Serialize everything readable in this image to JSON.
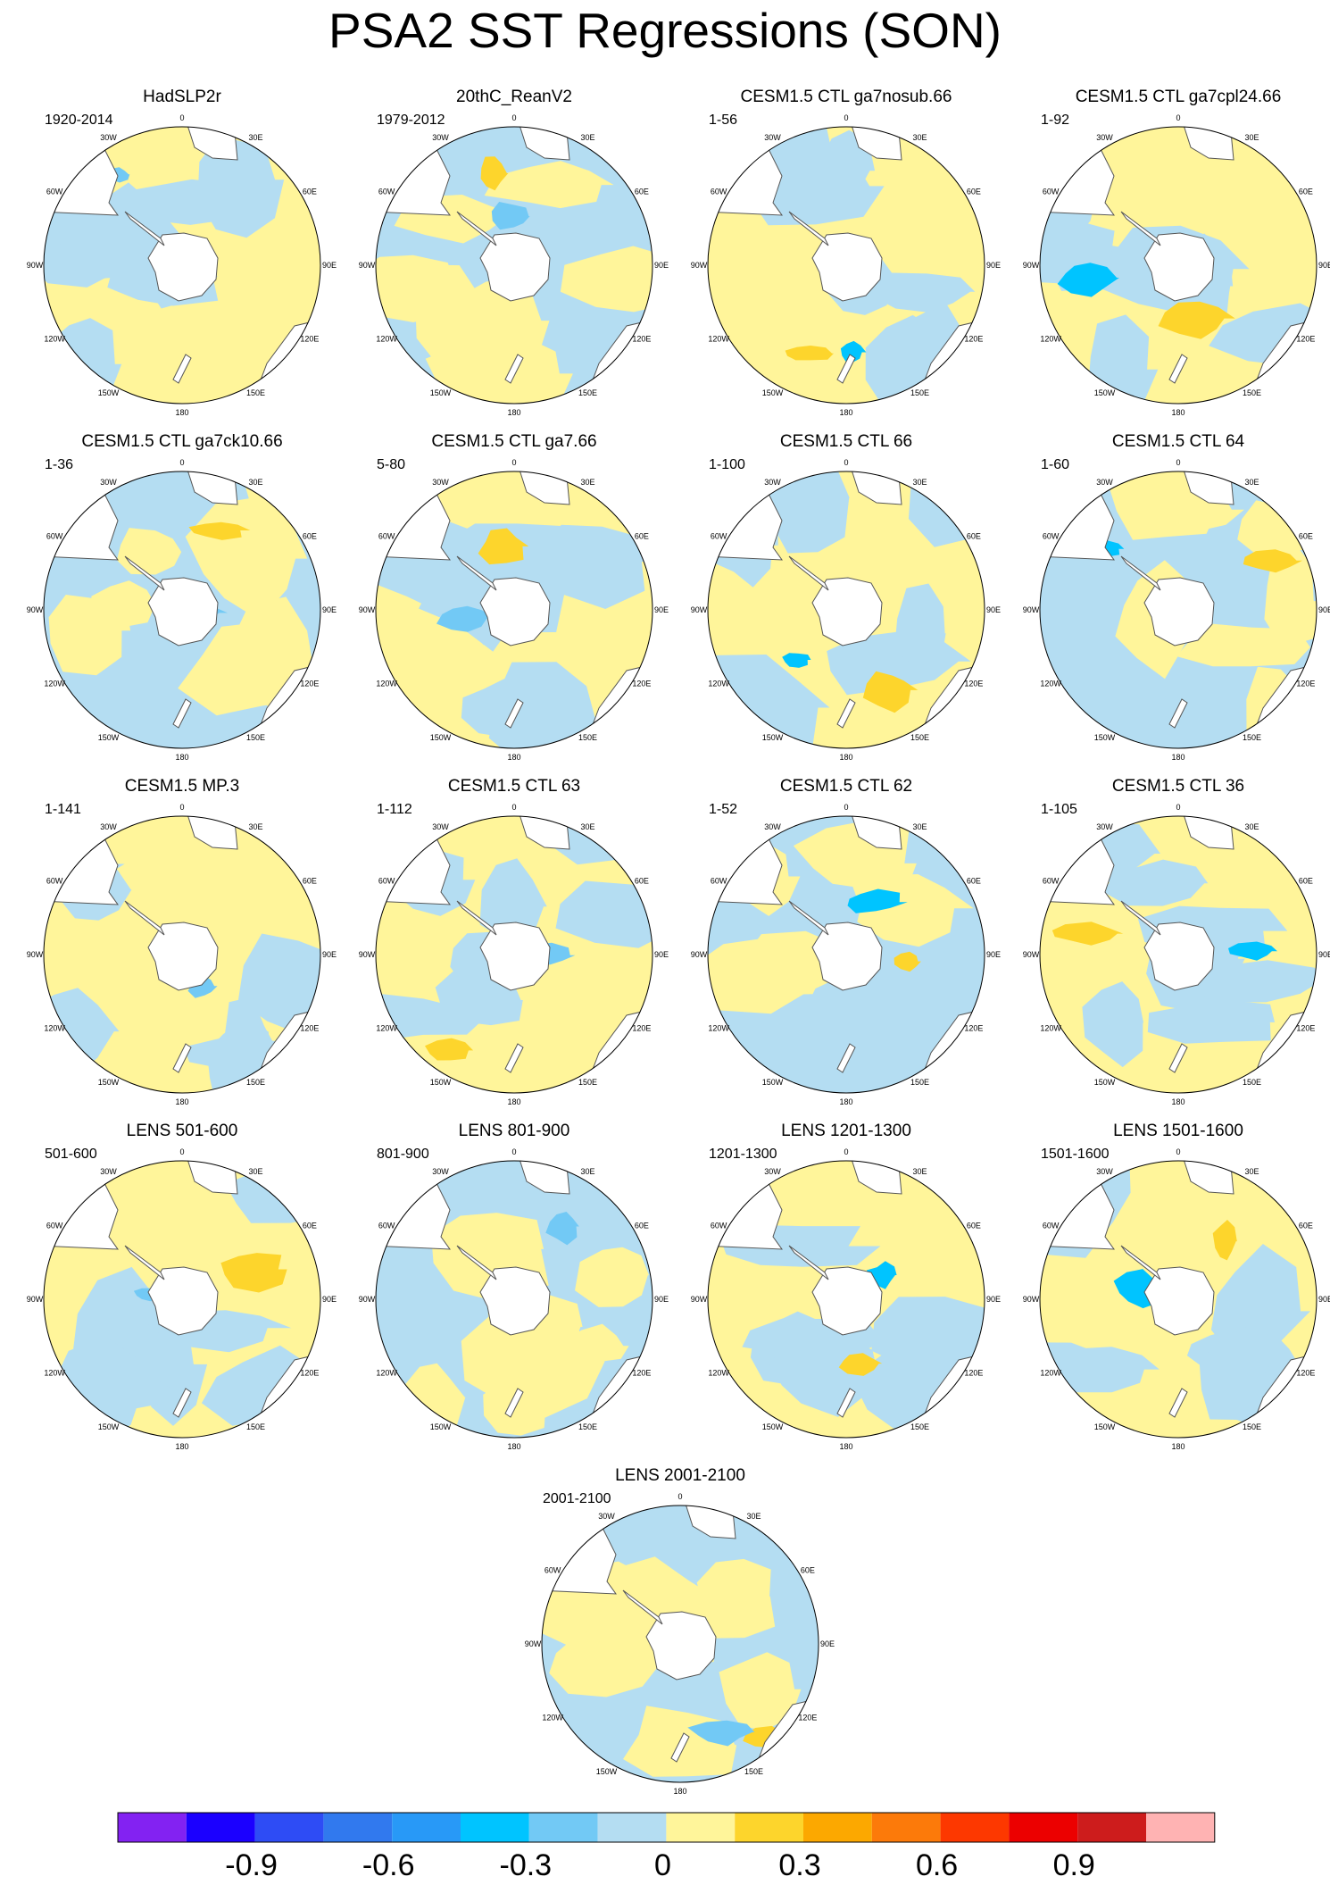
{
  "title": "PSA2 SST Regressions (SON)",
  "longitude_labels": [
    "0",
    "30E",
    "60E",
    "90E",
    "120E",
    "150E",
    "180",
    "150W",
    "120W",
    "90W",
    "60W",
    "30W"
  ],
  "panels": [
    {
      "title": "HadSLP2r",
      "period": "1920-2014"
    },
    {
      "title": "20thC_ReanV2",
      "period": "1979-2012"
    },
    {
      "title": "CESM1.5 CTL ga7nosub.66",
      "period": "1-56"
    },
    {
      "title": "CESM1.5 CTL ga7cpl24.66",
      "period": "1-92"
    },
    {
      "title": "CESM1.5 CTL ga7ck10.66",
      "period": "1-36"
    },
    {
      "title": "CESM1.5 CTL ga7.66",
      "period": "5-80"
    },
    {
      "title": "CESM1.5 CTL 66",
      "period": "1-100"
    },
    {
      "title": "CESM1.5 CTL 64",
      "period": "1-60"
    },
    {
      "title": "CESM1.5 MP.3",
      "period": "1-141"
    },
    {
      "title": "CESM1.5 CTL 63",
      "period": "1-112"
    },
    {
      "title": "CESM1.5 CTL 62",
      "period": "1-52"
    },
    {
      "title": "CESM1.5 CTL 36",
      "period": "1-105"
    },
    {
      "title": "LENS 501-600",
      "period": "501-600"
    },
    {
      "title": "LENS 801-900",
      "period": "801-900"
    },
    {
      "title": "LENS 1201-1300",
      "period": "1201-1300"
    },
    {
      "title": "LENS 1501-1600",
      "period": "1501-1600"
    },
    {
      "title": "LENS 2001-2100",
      "period": "2001-2100"
    }
  ],
  "colors": {
    "land": "#ffffff",
    "coast": "#555555",
    "neutral_negative": "#b4ddf2",
    "neutral_positive": "#fff59a"
  },
  "chart_data": {
    "type": "heatmap",
    "title": "PSA2 SST Regressions (SON)",
    "projection": "south-polar-stereographic",
    "colorbar": {
      "colors": [
        "#8322f2",
        "#1b00ff",
        "#2e4cf5",
        "#3179ee",
        "#2899f7",
        "#00c4ff",
        "#72c9f5",
        "#b4ddf2",
        "#fff59a",
        "#fdd52c",
        "#fca800",
        "#fc7a0a",
        "#fd3800",
        "#ec0000",
        "#cd1c1c",
        "#ffb3b3"
      ],
      "ticks": [
        -0.9,
        -0.6,
        -0.3,
        0,
        0.3,
        0.6,
        0.9
      ],
      "tick_labels": [
        "-0.9",
        "-0.6",
        "-0.3",
        "0",
        "0.3",
        "0.6",
        "0.9"
      ],
      "orientation": "horizontal"
    }
  }
}
